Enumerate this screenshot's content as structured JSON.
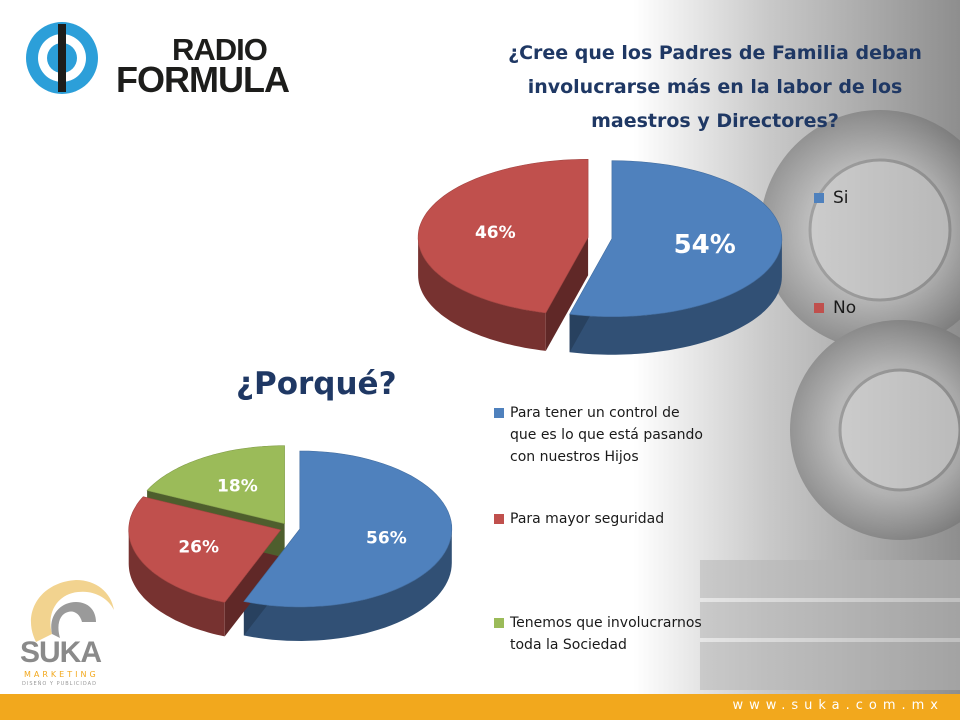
{
  "branding": {
    "logo_line1": "RADIO",
    "logo_line2": "FORMULA",
    "suka_name": "SUKA",
    "suka_sub": "MARKETING",
    "suka_tag": "DISEÑO Y PUBLICIDAD",
    "website": "www.suka.com.mx",
    "colors": {
      "accent_blue": "#1f3864",
      "footer": "#f2a81d",
      "logo_blue": "#2c9fd9"
    }
  },
  "chart_data": [
    {
      "type": "pie",
      "title": "¿Cree que los Padres de Familia deban involucrarse más en la labor de los maestros y Directores?",
      "labels": [
        "Si",
        "No"
      ],
      "values": [
        54,
        46
      ],
      "value_labels": [
        "54%",
        "46%"
      ],
      "colors": [
        "#4f81bd",
        "#c0504d"
      ],
      "legend_position": "right",
      "style": "3d-exploded"
    },
    {
      "type": "pie",
      "title": "¿Porqué?",
      "labels": [
        "Para tener un control de que es lo que está pasando con nuestros Hijos",
        "Para mayor seguridad",
        "Tenemos que involucrarnos toda la Sociedad"
      ],
      "legend_lines": [
        [
          "Para tener un control de",
          "que es lo que está pasando",
          "con nuestros Hijos"
        ],
        [
          "Para mayor seguridad"
        ],
        [
          "Tenemos que involucrarnos",
          "toda la Sociedad"
        ]
      ],
      "values": [
        56,
        26,
        18
      ],
      "value_labels": [
        "56%",
        "26%",
        "18%"
      ],
      "colors": [
        "#4f81bd",
        "#c0504d",
        "#9bbb59"
      ],
      "legend_position": "right",
      "style": "3d-exploded"
    }
  ]
}
